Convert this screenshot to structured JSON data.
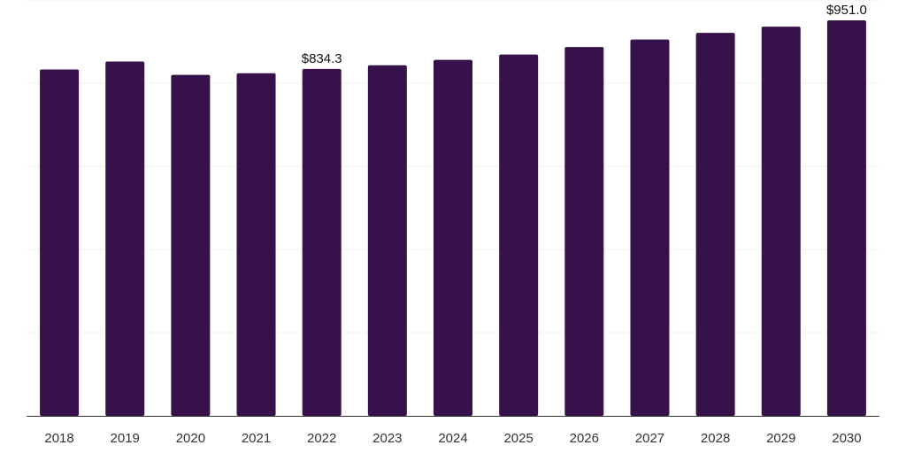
{
  "chart_data": {
    "type": "bar",
    "title": "",
    "xlabel": "",
    "ylabel": "",
    "categories": [
      "2018",
      "2019",
      "2020",
      "2021",
      "2022",
      "2023",
      "2024",
      "2025",
      "2026",
      "2027",
      "2028",
      "2029",
      "2030"
    ],
    "values": [
      833.0,
      852.0,
      820.0,
      824.0,
      834.3,
      843.0,
      856.0,
      869.0,
      887.0,
      905.0,
      921.0,
      936.0,
      951.0
    ],
    "data_labels": [
      {
        "category": "2022",
        "text": "$834.3"
      },
      {
        "category": "2030",
        "text": "$951.0"
      }
    ],
    "ylim": [
      0,
      1000
    ],
    "grid": true,
    "bar_color": "#36114a"
  }
}
